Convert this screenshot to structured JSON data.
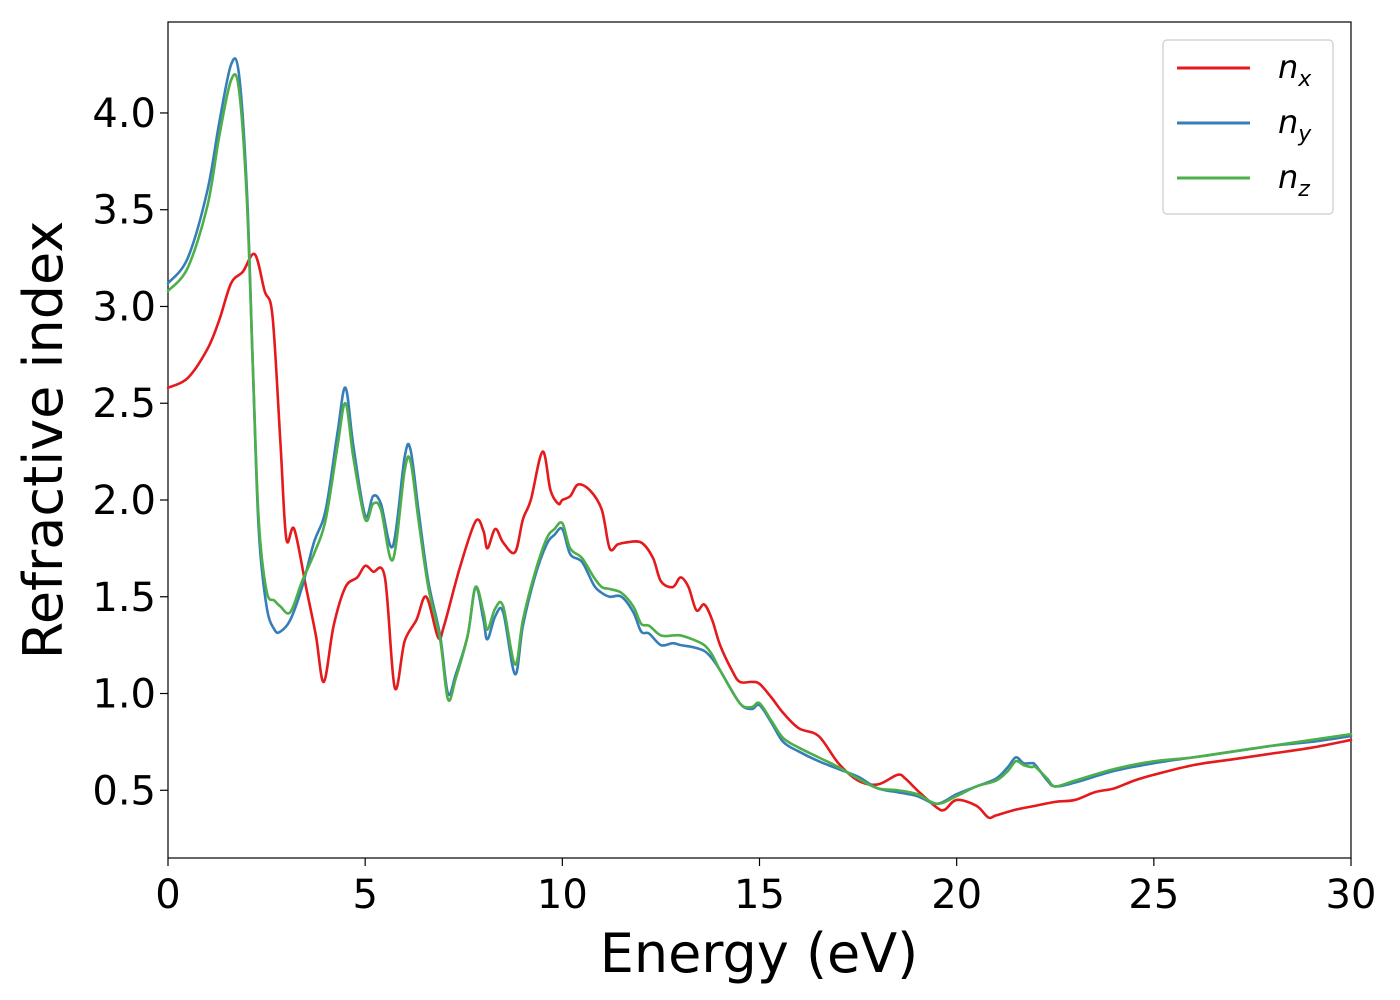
{
  "chart_data": {
    "type": "line",
    "xlabel": "Energy (eV)",
    "ylabel": "Refractive index",
    "xlim": [
      0,
      30
    ],
    "ylim": [
      0.15,
      4.47
    ],
    "xticks": [
      0,
      5,
      10,
      15,
      20,
      25,
      30
    ],
    "xtick_labels": [
      "0",
      "5",
      "10",
      "15",
      "20",
      "25",
      "30"
    ],
    "yticks": [
      0.5,
      1.0,
      1.5,
      2.0,
      2.5,
      3.0,
      3.5,
      4.0
    ],
    "ytick_labels": [
      "0.5",
      "1.0",
      "1.5",
      "2.0",
      "2.5",
      "3.0",
      "3.5",
      "4.0"
    ],
    "grid": false,
    "legend_position": "top-right",
    "series": [
      {
        "name": "n",
        "subscript": "x",
        "color": "#e41a1c",
        "x": [
          0,
          0.5,
          1.0,
          1.3,
          1.6,
          1.9,
          2.2,
          2.45,
          2.65,
          2.85,
          3.0,
          3.2,
          3.5,
          3.75,
          3.95,
          4.2,
          4.5,
          4.8,
          5.0,
          5.2,
          5.5,
          5.75,
          6.0,
          6.3,
          6.55,
          6.85,
          7.0,
          7.4,
          7.8,
          8.0,
          8.1,
          8.3,
          8.5,
          8.8,
          9.0,
          9.2,
          9.5,
          9.7,
          9.9,
          10.0,
          10.2,
          10.4,
          10.7,
          11.0,
          11.2,
          11.4,
          11.6,
          12.0,
          12.3,
          12.5,
          12.8,
          13.0,
          13.2,
          13.4,
          13.6,
          13.8,
          14.0,
          14.3,
          14.5,
          14.8,
          15.0,
          15.3,
          15.6,
          16.0,
          16.5,
          17.0,
          17.5,
          18.0,
          18.5,
          18.7,
          19.0,
          19.5,
          19.7,
          20.0,
          20.5,
          20.8,
          21.0,
          21.5,
          22.0,
          22.5,
          23.0,
          23.5,
          24.0,
          24.5,
          25.0,
          26.0,
          27.0,
          28.0,
          29.0,
          30.0
        ],
        "values": [
          2.58,
          2.63,
          2.78,
          2.93,
          3.12,
          3.18,
          3.27,
          3.08,
          2.95,
          2.3,
          1.8,
          1.85,
          1.55,
          1.3,
          1.06,
          1.35,
          1.55,
          1.6,
          1.66,
          1.63,
          1.6,
          1.03,
          1.27,
          1.38,
          1.5,
          1.29,
          1.35,
          1.65,
          1.89,
          1.84,
          1.75,
          1.85,
          1.78,
          1.73,
          1.9,
          2.0,
          2.25,
          2.05,
          1.98,
          2.0,
          2.02,
          2.08,
          2.05,
          1.95,
          1.75,
          1.77,
          1.78,
          1.78,
          1.7,
          1.58,
          1.55,
          1.6,
          1.55,
          1.43,
          1.46,
          1.38,
          1.25,
          1.12,
          1.06,
          1.06,
          1.05,
          0.98,
          0.9,
          0.82,
          0.78,
          0.64,
          0.55,
          0.53,
          0.58,
          0.56,
          0.5,
          0.41,
          0.4,
          0.45,
          0.42,
          0.36,
          0.37,
          0.4,
          0.42,
          0.44,
          0.45,
          0.49,
          0.51,
          0.55,
          0.58,
          0.63,
          0.66,
          0.69,
          0.72,
          0.76
        ]
      },
      {
        "name": "n",
        "subscript": "y",
        "color": "#377eb8",
        "x": [
          0,
          0.5,
          1.0,
          1.3,
          1.6,
          1.8,
          2.0,
          2.15,
          2.3,
          2.5,
          2.7,
          2.85,
          3.1,
          3.4,
          3.7,
          4.0,
          4.3,
          4.5,
          4.7,
          5.0,
          5.2,
          5.4,
          5.7,
          6.0,
          6.15,
          6.35,
          6.6,
          6.9,
          7.1,
          7.3,
          7.6,
          7.8,
          8.0,
          8.1,
          8.3,
          8.5,
          8.8,
          9.0,
          9.3,
          9.6,
          9.8,
          10.0,
          10.2,
          10.5,
          10.8,
          11.0,
          11.2,
          11.5,
          11.8,
          12.0,
          12.2,
          12.5,
          12.8,
          13.0,
          13.3,
          13.6,
          13.8,
          14.0,
          14.5,
          14.8,
          15.0,
          15.3,
          15.6,
          16.0,
          16.5,
          17.0,
          17.5,
          18.0,
          18.5,
          19.0,
          19.5,
          20.0,
          20.5,
          21.0,
          21.3,
          21.5,
          21.7,
          21.9,
          22.0,
          22.3,
          22.5,
          23.0,
          24.0,
          25.0,
          26.0,
          27.0,
          28.0,
          29.0,
          30.0
        ],
        "values": [
          3.12,
          3.25,
          3.6,
          3.95,
          4.25,
          4.2,
          3.6,
          2.7,
          1.85,
          1.45,
          1.33,
          1.32,
          1.38,
          1.55,
          1.78,
          1.95,
          2.35,
          2.58,
          2.28,
          1.92,
          2.02,
          1.98,
          1.76,
          2.22,
          2.26,
          1.95,
          1.58,
          1.3,
          1.0,
          1.1,
          1.3,
          1.55,
          1.38,
          1.28,
          1.4,
          1.42,
          1.1,
          1.35,
          1.6,
          1.77,
          1.82,
          1.85,
          1.72,
          1.68,
          1.56,
          1.52,
          1.5,
          1.5,
          1.42,
          1.32,
          1.31,
          1.25,
          1.26,
          1.25,
          1.24,
          1.22,
          1.18,
          1.12,
          0.95,
          0.92,
          0.94,
          0.85,
          0.75,
          0.7,
          0.65,
          0.61,
          0.57,
          0.51,
          0.49,
          0.47,
          0.43,
          0.48,
          0.52,
          0.56,
          0.62,
          0.67,
          0.64,
          0.64,
          0.63,
          0.55,
          0.52,
          0.54,
          0.6,
          0.64,
          0.67,
          0.7,
          0.73,
          0.75,
          0.78
        ]
      },
      {
        "name": "n",
        "subscript": "z",
        "color": "#4daf4a",
        "x": [
          0,
          0.5,
          1.0,
          1.3,
          1.6,
          1.8,
          2.0,
          2.15,
          2.3,
          2.5,
          2.7,
          2.85,
          3.1,
          3.4,
          3.7,
          4.0,
          4.3,
          4.5,
          4.7,
          5.0,
          5.2,
          5.4,
          5.7,
          6.0,
          6.15,
          6.35,
          6.6,
          6.9,
          7.1,
          7.3,
          7.6,
          7.8,
          8.0,
          8.1,
          8.3,
          8.5,
          8.8,
          9.0,
          9.3,
          9.6,
          9.8,
          10.0,
          10.2,
          10.5,
          10.8,
          11.0,
          11.2,
          11.5,
          11.8,
          12.0,
          12.2,
          12.5,
          12.8,
          13.0,
          13.3,
          13.6,
          13.8,
          14.0,
          14.5,
          14.8,
          15.0,
          15.3,
          15.6,
          16.0,
          16.5,
          17.0,
          17.5,
          18.0,
          18.5,
          19.0,
          19.5,
          20.0,
          20.5,
          21.0,
          21.3,
          21.5,
          21.7,
          21.9,
          22.0,
          22.3,
          22.5,
          23.0,
          24.0,
          25.0,
          26.0,
          27.0,
          28.0,
          29.0,
          30.0
        ],
        "values": [
          3.08,
          3.2,
          3.52,
          3.88,
          4.17,
          4.12,
          3.55,
          2.7,
          1.9,
          1.53,
          1.48,
          1.45,
          1.42,
          1.58,
          1.72,
          1.9,
          2.28,
          2.5,
          2.22,
          1.9,
          1.98,
          1.95,
          1.69,
          2.15,
          2.2,
          1.9,
          1.55,
          1.28,
          0.97,
          1.08,
          1.3,
          1.55,
          1.42,
          1.33,
          1.44,
          1.45,
          1.15,
          1.38,
          1.62,
          1.8,
          1.85,
          1.88,
          1.75,
          1.7,
          1.6,
          1.55,
          1.54,
          1.52,
          1.45,
          1.36,
          1.35,
          1.3,
          1.3,
          1.3,
          1.28,
          1.25,
          1.2,
          1.12,
          0.95,
          0.93,
          0.95,
          0.86,
          0.77,
          0.72,
          0.67,
          0.62,
          0.56,
          0.51,
          0.5,
          0.48,
          0.43,
          0.47,
          0.52,
          0.55,
          0.6,
          0.65,
          0.63,
          0.62,
          0.62,
          0.56,
          0.52,
          0.55,
          0.61,
          0.65,
          0.67,
          0.7,
          0.73,
          0.76,
          0.79
        ]
      }
    ]
  }
}
